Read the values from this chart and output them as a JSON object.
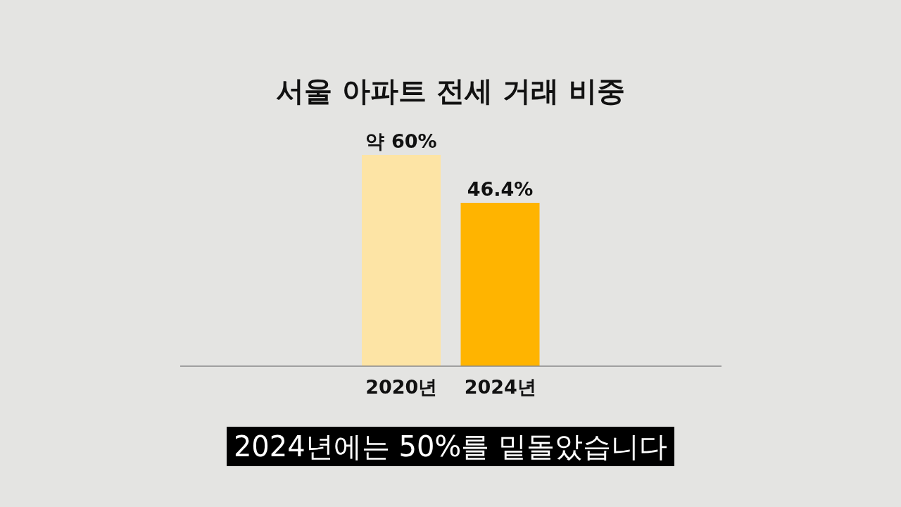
{
  "chart_data": {
    "type": "bar",
    "title": "서울 아파트 전세 거래 비중",
    "categories": [
      "2020년",
      "2024년"
    ],
    "values": [
      60,
      46.4
    ],
    "colors": [
      "#fde4a5",
      "#ffb400"
    ],
    "value_labels": [
      "약 60%",
      "46.4%"
    ],
    "annotations": [
      "2024년에는 50%를 밑돌았습니다"
    ],
    "grid": false,
    "legend": false
  }
}
